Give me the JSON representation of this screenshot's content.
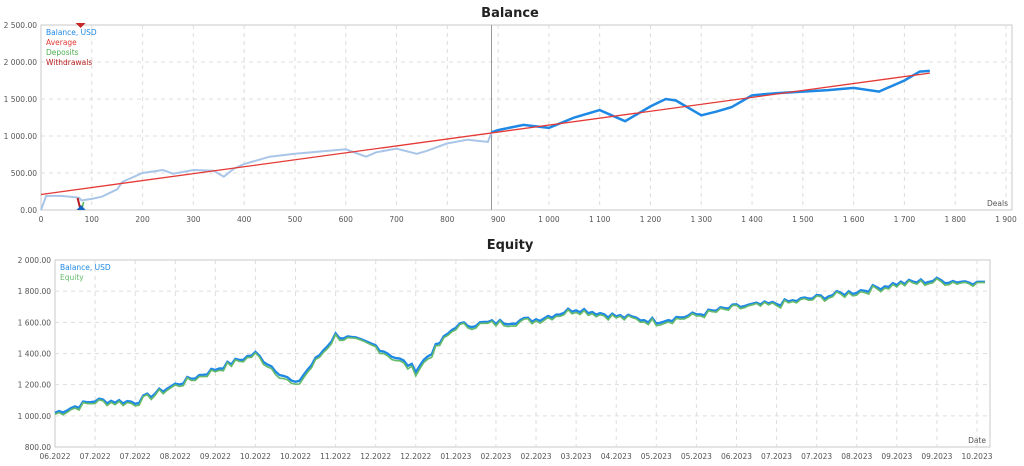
{
  "balance_chart": {
    "title": "Balance",
    "legend": [
      {
        "label": "Balance, USD",
        "color": "#1e88e5"
      },
      {
        "label": "Average",
        "color": "#e53935"
      },
      {
        "label": "Deposits",
        "color": "#4caf50"
      },
      {
        "label": "Withdrawals",
        "color": "#b71c1c"
      }
    ],
    "x_axis_label": "Deals",
    "y_ticks": [
      "2 500.00",
      "2 000.00",
      "1 500.00",
      "1 000.00",
      "500.00",
      "0.00"
    ],
    "x_ticks": [
      "0",
      "100",
      "200",
      "300",
      "400",
      "500",
      "600",
      "700",
      "800",
      "900",
      "1 000",
      "1 100",
      "1 200",
      "1 300",
      "1 400",
      "1 500",
      "1 600",
      "1 700",
      "1 800",
      "1 900"
    ]
  },
  "equity_chart": {
    "title": "Equity",
    "legend": [
      {
        "label": "Balance, USD",
        "color": "#1e88e5"
      },
      {
        "label": "Equity",
        "color": "#66bb6a"
      }
    ],
    "x_axis_label": "Date",
    "y_ticks": [
      "2 000.00",
      "1 800.00",
      "1 600.00",
      "1 400.00",
      "1 200.00",
      "1 000.00",
      "800.00"
    ],
    "x_ticks": [
      "06.2022",
      "07.2022",
      "07.2022",
      "08.2022",
      "09.2022",
      "10.2022",
      "10.2022",
      "11.2022",
      "12.2022",
      "12.2022",
      "01.2023",
      "02.2023",
      "02.2023",
      "03.2023",
      "04.2023",
      "05.2023",
      "05.2023",
      "06.2023",
      "07.2023",
      "07.2023",
      "08.2023",
      "09.2023",
      "09.2023",
      "10.2023"
    ]
  },
  "chart_data": [
    {
      "type": "line",
      "title": "Balance",
      "xlabel": "Deals",
      "ylabel": "",
      "xlim": [
        0,
        1900
      ],
      "ylim": [
        0,
        2500
      ],
      "grid": true,
      "legend_position": "top-left",
      "series": [
        {
          "name": "Balance, USD",
          "x": [
            0,
            10,
            40,
            70,
            75,
            80,
            100,
            120,
            150,
            160,
            200,
            240,
            260,
            300,
            340,
            360,
            380,
            400,
            450,
            500,
            550,
            600,
            620,
            640,
            660,
            700,
            740,
            760,
            800,
            840,
            880,
            887,
            900,
            950,
            1000,
            1050,
            1100,
            1150,
            1200,
            1230,
            1250,
            1300,
            1330,
            1360,
            1400,
            1450,
            1500,
            1550,
            1600,
            1650,
            1700,
            1730,
            1750
          ],
          "values": [
            0,
            190,
            190,
            170,
            165,
            130,
            150,
            180,
            280,
            380,
            500,
            540,
            490,
            540,
            530,
            450,
            560,
            620,
            720,
            760,
            790,
            820,
            770,
            720,
            780,
            830,
            760,
            800,
            900,
            950,
            920,
            1050,
            1080,
            1150,
            1110,
            1250,
            1350,
            1200,
            1400,
            1500,
            1480,
            1280,
            1330,
            1390,
            1550,
            1580,
            1600,
            1620,
            1650,
            1600,
            1750,
            1870,
            1880
          ]
        },
        {
          "name": "Average",
          "x": [
            0,
            1750
          ],
          "values": [
            210,
            1850
          ]
        },
        {
          "name": "Deposits",
          "x": [
            78
          ],
          "values": [
            0
          ]
        },
        {
          "name": "Withdrawals",
          "x": [
            76
          ],
          "values": [
            0
          ]
        }
      ],
      "annotations": [
        "vertical marker line at ~887 deals (light vs. dark balance segment boundary)"
      ]
    },
    {
      "type": "line",
      "title": "Equity",
      "xlabel": "Date",
      "ylabel": "",
      "ylim": [
        800,
        2000
      ],
      "grid": true,
      "legend_position": "top-left",
      "categories": [
        "06.2022",
        "07.2022",
        "07.2022",
        "08.2022",
        "09.2022",
        "10.2022",
        "10.2022",
        "11.2022",
        "12.2022",
        "12.2022",
        "01.2023",
        "02.2023",
        "02.2023",
        "03.2023",
        "04.2023",
        "05.2023",
        "05.2023",
        "06.2023",
        "07.2023",
        "07.2023",
        "08.2023",
        "09.2023",
        "09.2023",
        "10.2023"
      ],
      "series": [
        {
          "name": "Balance, USD",
          "values": [
            1020,
            1100,
            1090,
            1200,
            1300,
            1400,
            1200,
            1520,
            1450,
            1300,
            1580,
            1600,
            1620,
            1690,
            1640,
            1610,
            1650,
            1700,
            1720,
            1760,
            1800,
            1850,
            1870,
            1860
          ]
        },
        {
          "name": "Equity",
          "values": [
            1010,
            1090,
            1080,
            1190,
            1290,
            1390,
            1180,
            1510,
            1440,
            1280,
            1570,
            1590,
            1610,
            1680,
            1630,
            1600,
            1640,
            1690,
            1710,
            1750,
            1790,
            1840,
            1860,
            1855
          ]
        }
      ]
    }
  ]
}
